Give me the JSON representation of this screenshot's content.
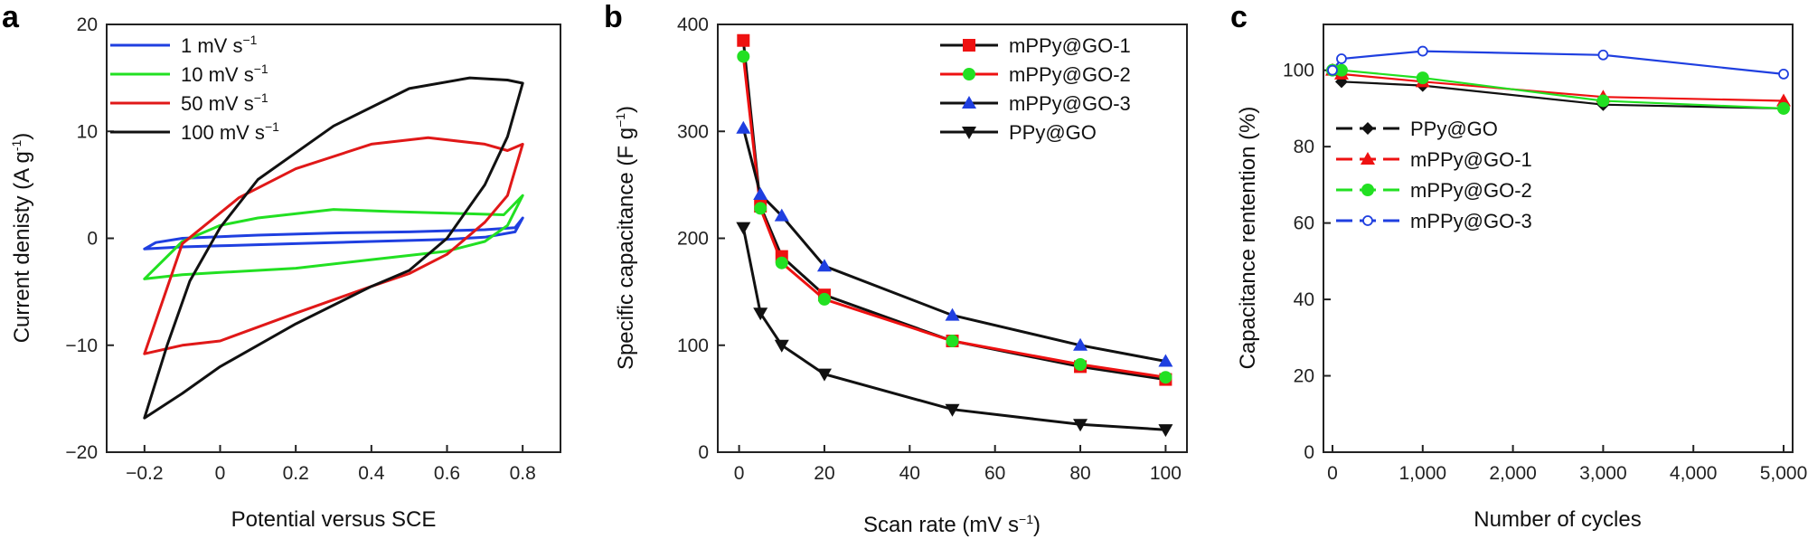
{
  "chart_data": [
    {
      "panel": "a",
      "type": "line",
      "title": "",
      "xlabel": "Potential versus SCE",
      "ylabel": "Current denisty (A g",
      "ylabel_sup": "-1",
      "ylabel_tail": ")",
      "xlim": [
        -0.3,
        0.9
      ],
      "ylim": [
        -20,
        20
      ],
      "xticks": [
        -0.2,
        0,
        0.2,
        0.4,
        0.6,
        0.8
      ],
      "xtick_labels": [
        "−0.2",
        "0",
        "0.2",
        "0.4",
        "0.6",
        "0.8"
      ],
      "yticks": [
        -20,
        -10,
        0,
        10,
        20
      ],
      "ytick_labels": [
        "−20",
        "−10",
        "0",
        "10",
        "20"
      ],
      "legend_position": "top-left",
      "series": [
        {
          "name": "1 mV s",
          "sup": "−1",
          "color": "#1f3fe0",
          "points": [
            [
              -0.2,
              -1.0
            ],
            [
              -0.1,
              -0.8
            ],
            [
              0,
              -0.7
            ],
            [
              0.2,
              -0.5
            ],
            [
              0.4,
              -0.3
            ],
            [
              0.6,
              -0.1
            ],
            [
              0.7,
              0.1
            ],
            [
              0.78,
              0.6
            ],
            [
              0.8,
              1.9
            ],
            [
              0.78,
              1.0
            ],
            [
              0.7,
              0.8
            ],
            [
              0.5,
              0.6
            ],
            [
              0.3,
              0.5
            ],
            [
              0.1,
              0.3
            ],
            [
              -0.1,
              0.0
            ],
            [
              -0.17,
              -0.4
            ],
            [
              -0.2,
              -1.0
            ]
          ]
        },
        {
          "name": "10 mV s",
          "sup": "−1",
          "color": "#22e022",
          "points": [
            [
              -0.2,
              -3.8
            ],
            [
              -0.1,
              -3.4
            ],
            [
              0,
              -3.2
            ],
            [
              0.2,
              -2.8
            ],
            [
              0.4,
              -2.0
            ],
            [
              0.6,
              -1.2
            ],
            [
              0.7,
              -0.3
            ],
            [
              0.76,
              1.2
            ],
            [
              0.8,
              4.0
            ],
            [
              0.75,
              2.2
            ],
            [
              0.65,
              2.3
            ],
            [
              0.45,
              2.5
            ],
            [
              0.3,
              2.7
            ],
            [
              0.1,
              1.9
            ],
            [
              0,
              1.2
            ],
            [
              -0.1,
              -0.3
            ],
            [
              -0.2,
              -3.8
            ]
          ]
        },
        {
          "name": "50 mV s",
          "sup": "−1",
          "color": "#e01818",
          "points": [
            [
              -0.2,
              -10.8
            ],
            [
              -0.1,
              -10.0
            ],
            [
              0,
              -9.6
            ],
            [
              0.2,
              -7.0
            ],
            [
              0.4,
              -4.5
            ],
            [
              0.5,
              -3.3
            ],
            [
              0.6,
              -1.5
            ],
            [
              0.7,
              1.5
            ],
            [
              0.76,
              4.0
            ],
            [
              0.8,
              8.8
            ],
            [
              0.76,
              8.2
            ],
            [
              0.7,
              8.8
            ],
            [
              0.55,
              9.4
            ],
            [
              0.4,
              8.8
            ],
            [
              0.2,
              6.5
            ],
            [
              0.05,
              3.8
            ],
            [
              -0.1,
              -0.5
            ],
            [
              -0.2,
              -10.8
            ]
          ]
        },
        {
          "name": "100 mV s",
          "sup": "−1",
          "color": "#111111",
          "points": [
            [
              -0.2,
              -16.8
            ],
            [
              -0.1,
              -14.5
            ],
            [
              0,
              -12.0
            ],
            [
              0.2,
              -8.0
            ],
            [
              0.4,
              -4.5
            ],
            [
              0.5,
              -3.0
            ],
            [
              0.6,
              0.0
            ],
            [
              0.7,
              5.0
            ],
            [
              0.76,
              9.5
            ],
            [
              0.8,
              14.5
            ],
            [
              0.76,
              14.8
            ],
            [
              0.66,
              15.0
            ],
            [
              0.5,
              14.0
            ],
            [
              0.3,
              10.5
            ],
            [
              0.1,
              5.5
            ],
            [
              0,
              1.0
            ],
            [
              -0.08,
              -4.0
            ],
            [
              -0.14,
              -10.0
            ],
            [
              -0.2,
              -16.8
            ]
          ]
        }
      ]
    },
    {
      "panel": "b",
      "type": "line",
      "title": "",
      "xlabel": "Scan rate (mV s",
      "xlabel_sup": "−1",
      "xlabel_tail": ")",
      "ylabel": "Specific capacitance (F g",
      "ylabel_sup": "−1",
      "ylabel_tail": ")",
      "xlim": [
        -5,
        105
      ],
      "ylim": [
        0,
        400
      ],
      "xticks": [
        0,
        20,
        40,
        60,
        80,
        100
      ],
      "yticks": [
        0,
        100,
        200,
        300,
        400
      ],
      "legend_position": "top-right",
      "series": [
        {
          "name": "mPPy@GO-1",
          "line": "#111111",
          "marker": "square",
          "marker_color": "#ee1111",
          "x": [
            1,
            5,
            10,
            20,
            50,
            80,
            100
          ],
          "y": [
            385,
            230,
            183,
            147,
            104,
            80,
            68
          ]
        },
        {
          "name": "mPPy@GO-2",
          "line": "#ee1111",
          "marker": "circle",
          "marker_color": "#22e022",
          "x": [
            1,
            5,
            10,
            20,
            50,
            80,
            100
          ],
          "y": [
            370,
            228,
            177,
            143,
            104,
            82,
            70
          ]
        },
        {
          "name": "mPPy@GO-3",
          "line": "#111111",
          "marker": "triangle-up",
          "marker_color": "#1f3fe0",
          "x": [
            1,
            5,
            10,
            20,
            50,
            80,
            100
          ],
          "y": [
            303,
            241,
            221,
            174,
            128,
            100,
            85
          ]
        },
        {
          "name": "PPy@GO",
          "line": "#111111",
          "marker": "triangle-down",
          "marker_color": "#111111",
          "x": [
            1,
            5,
            10,
            20,
            50,
            80,
            100
          ],
          "y": [
            210,
            130,
            100,
            73,
            40,
            26,
            21
          ]
        }
      ]
    },
    {
      "panel": "c",
      "type": "line",
      "title": "",
      "xlabel": "Number of cycles",
      "ylabel": "Capacitance rentention (%)",
      "xlim": [
        -100,
        5100
      ],
      "ylim": [
        0,
        112
      ],
      "xticks": [
        0,
        1000,
        2000,
        3000,
        4000,
        5000
      ],
      "xtick_labels": [
        "0",
        "1,000",
        "2,000",
        "3,000",
        "4,000",
        "5,000"
      ],
      "yticks": [
        0,
        20,
        40,
        60,
        80,
        100
      ],
      "legend_position": "center-left",
      "series": [
        {
          "name": "PPy@GO",
          "line": "#111111",
          "marker": "diamond",
          "marker_color": "#111111",
          "x": [
            0,
            100,
            1000,
            3000,
            5000
          ],
          "y": [
            100,
            97,
            96,
            91,
            90
          ]
        },
        {
          "name": "mPPy@GO-1",
          "line": "#ee1111",
          "marker": "triangle-up",
          "marker_color": "#ee1111",
          "x": [
            0,
            100,
            1000,
            3000,
            5000
          ],
          "y": [
            100,
            99,
            97,
            93,
            92
          ]
        },
        {
          "name": "mPPy@GO-2",
          "line": "#22e022",
          "marker": "circle",
          "marker_color": "#22e022",
          "x": [
            0,
            100,
            1000,
            3000,
            5000
          ],
          "y": [
            100,
            100,
            98,
            92,
            90
          ]
        },
        {
          "name": "mPPy@GO-3",
          "line": "#1f3fe0",
          "marker": "open-circle",
          "marker_color": "#1f3fe0",
          "x": [
            0,
            100,
            1000,
            3000,
            5000
          ],
          "y": [
            100,
            103,
            105,
            104,
            99
          ]
        }
      ]
    }
  ]
}
